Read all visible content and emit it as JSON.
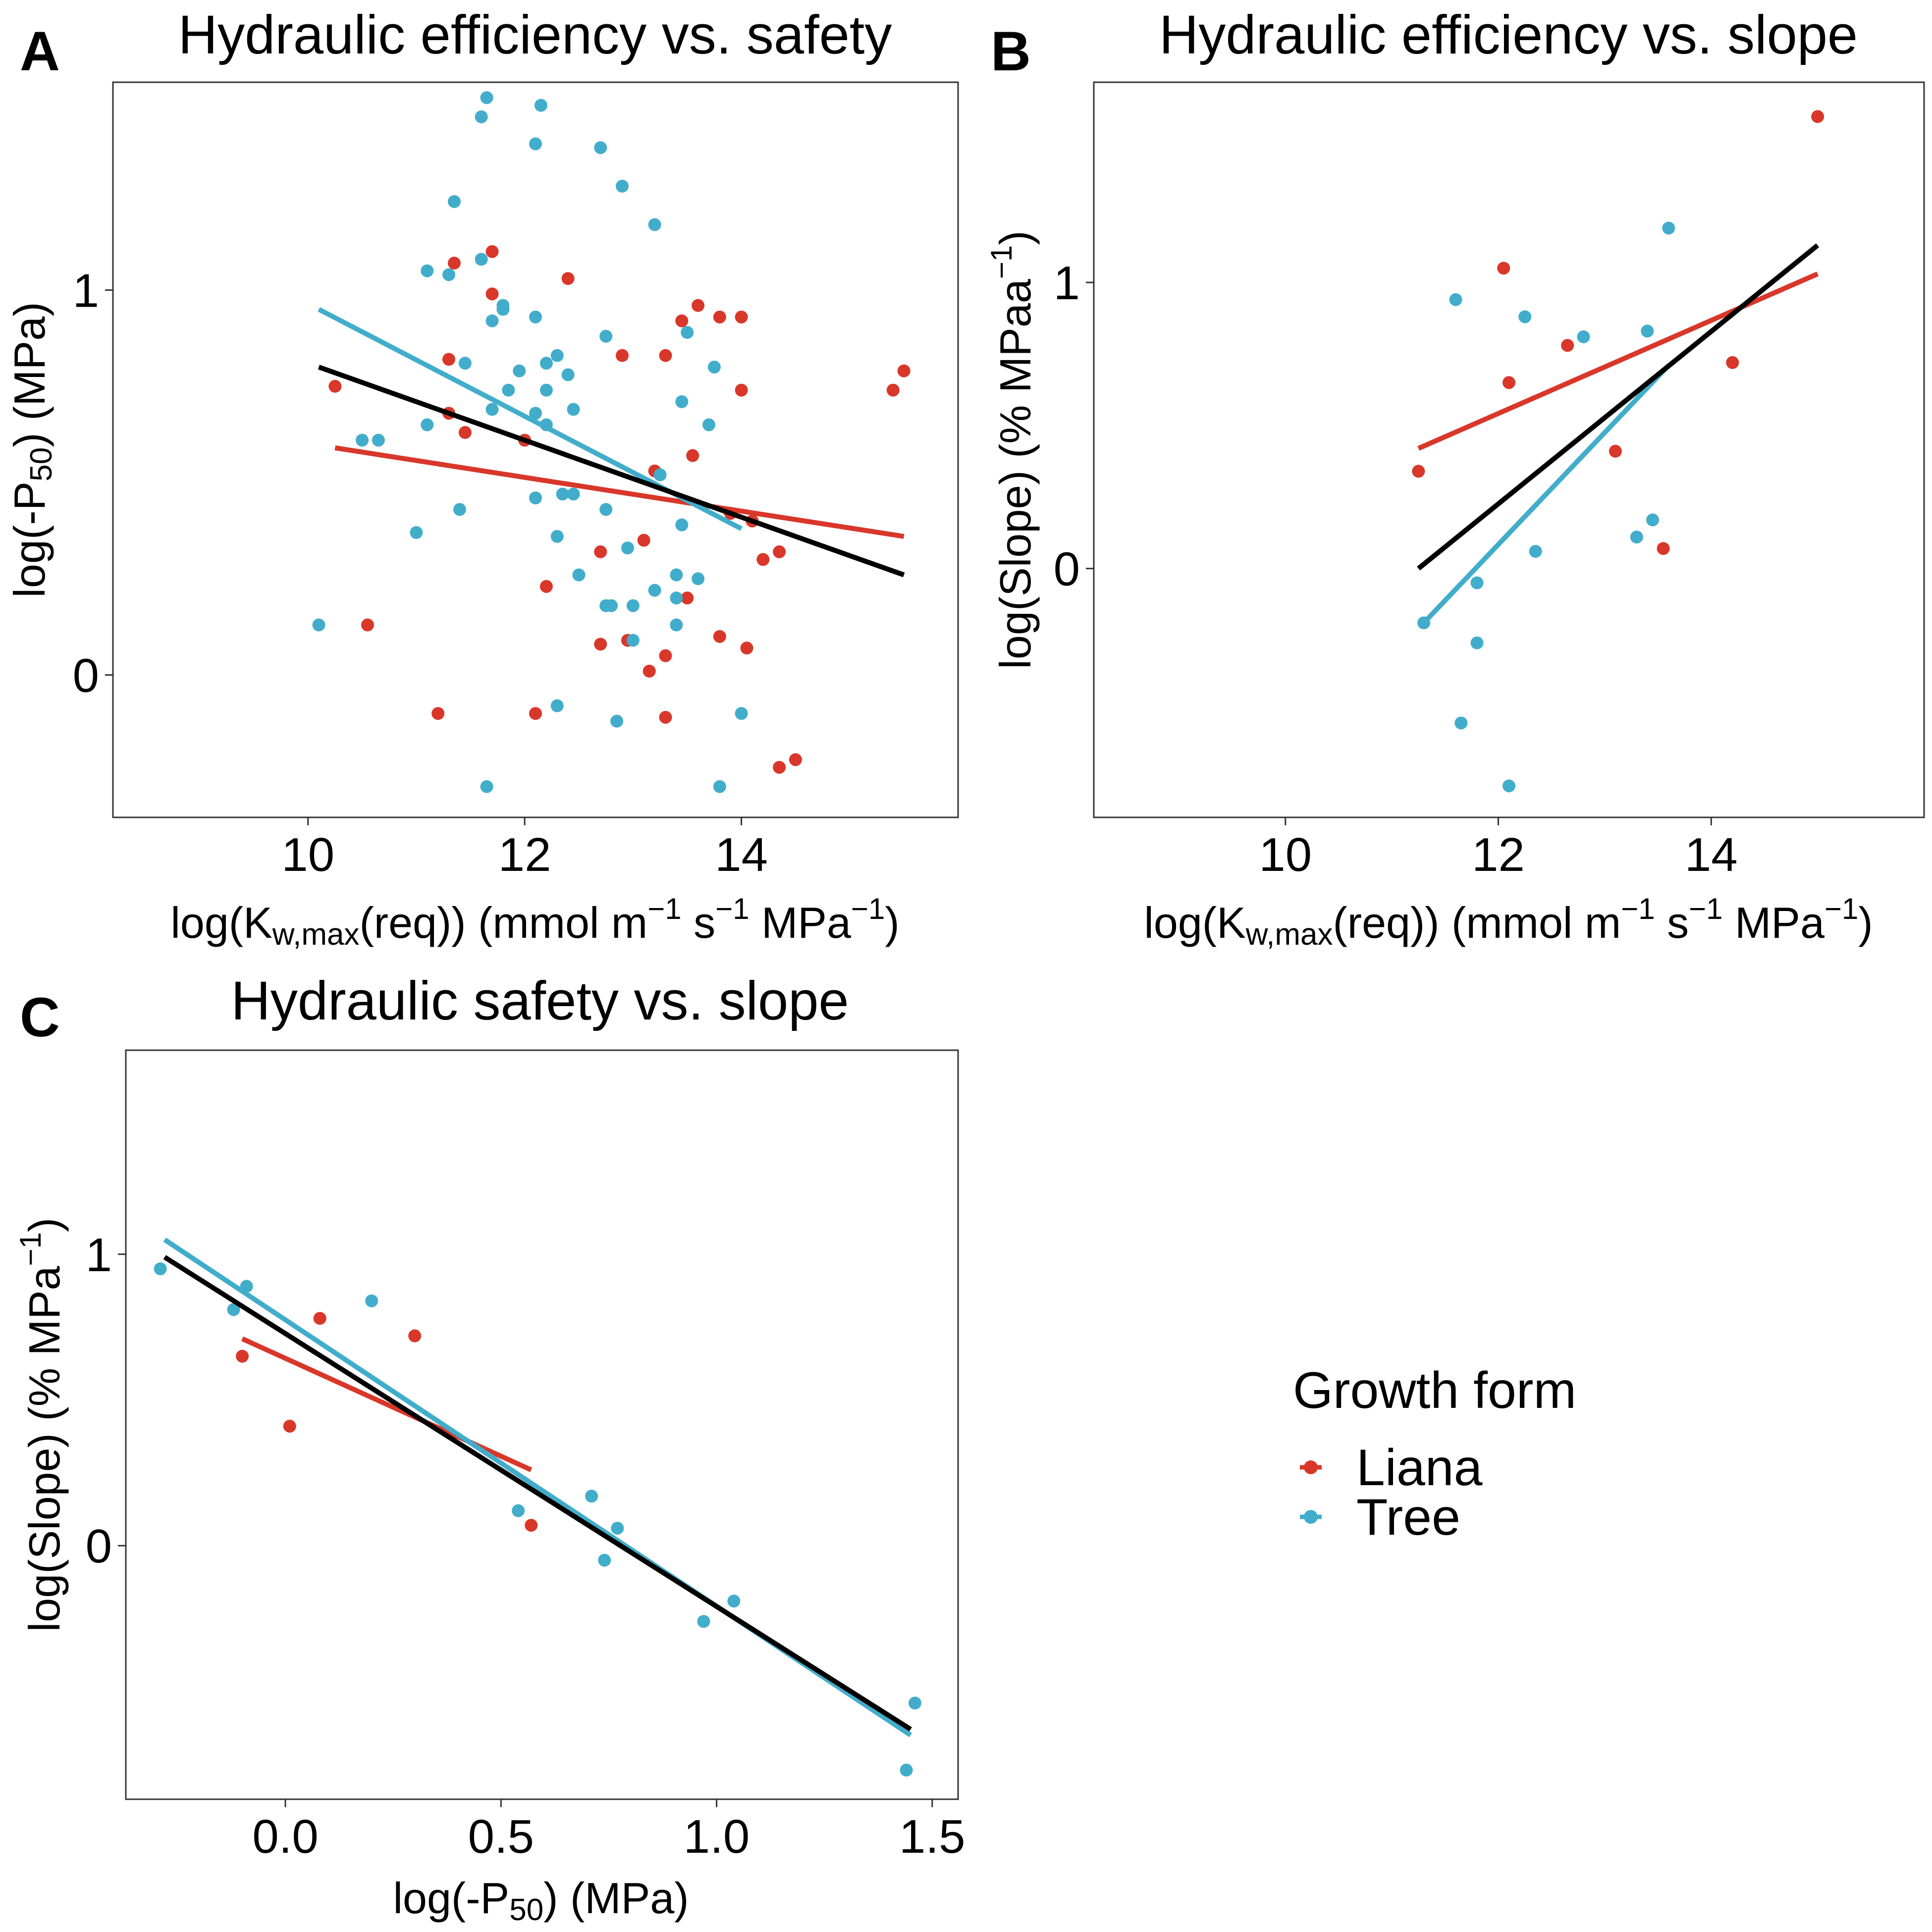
{
  "colors": {
    "liana": "#d8372a",
    "tree": "#42adcb",
    "all": "#000000"
  },
  "legend": {
    "title": "Growth form",
    "items": [
      {
        "label": "Liana",
        "color": "#d8372a"
      },
      {
        "label": "Tree",
        "color": "#42adcb"
      }
    ]
  },
  "panels": [
    {
      "label": "A",
      "title": "Hydraulic efficiency vs. safety",
      "xlabel": {
        "pre": "log(K",
        "sub": "w,max",
        "mid": "(req))  (mmol m",
        "sup1": "−1",
        "mid2": " s",
        "sup2": "−1",
        "mid3": " MPa",
        "sup3": "−1",
        "post": ")"
      },
      "ylabel": {
        "pre": "log(-P",
        "sub": "50",
        "post": ") (MPa)"
      }
    },
    {
      "label": "B",
      "title": "Hydraulic efficiency vs. slope",
      "xlabel": {
        "pre": "log(K",
        "sub": "w,max",
        "mid": "(req))  (mmol m",
        "sup1": "−1",
        "mid2": " s",
        "sup2": "−1",
        "mid3": " MPa",
        "sup3": "−1",
        "post": ")"
      },
      "ylabel": {
        "pre": "log(Slope) (% MPaa",
        "sup": "−1",
        "post": ")"
      }
    },
    {
      "label": "C",
      "title": "Hydraulic safety vs. slope",
      "xlabel": {
        "pre": "log(-P",
        "sub": "50",
        "post": ") (MPa)"
      },
      "ylabel": {
        "pre": "log(Slope) (% MPa",
        "sup": "−1",
        "post": ")"
      }
    }
  ],
  "chart_data": [
    {
      "type": "scatter",
      "title": "Hydraulic efficiency vs. safety",
      "xlabel": "log(Kw,max(req))  (mmol m−1 s−1 MPa−1)",
      "ylabel": "log(-P50) (MPa)",
      "xlim": [
        8.2,
        16.0
      ],
      "ylim": [
        -0.37,
        1.54
      ],
      "xticks": [
        10,
        12,
        14
      ],
      "yticks": [
        0,
        1
      ],
      "grid": false,
      "series": [
        {
          "name": "Liana",
          "points": [
            [
              10.25,
              0.75
            ],
            [
              10.55,
              0.13
            ],
            [
              11.2,
              -0.1
            ],
            [
              11.3,
              0.82
            ],
            [
              11.3,
              0.68
            ],
            [
              11.35,
              1.07
            ],
            [
              11.45,
              0.63
            ],
            [
              11.7,
              0.99
            ],
            [
              11.7,
              1.1
            ],
            [
              12.0,
              0.61
            ],
            [
              12.1,
              -0.1
            ],
            [
              12.2,
              0.23
            ],
            [
              12.4,
              1.03
            ],
            [
              12.7,
              0.32
            ],
            [
              12.7,
              0.08
            ],
            [
              12.9,
              0.83
            ],
            [
              12.95,
              0.09
            ],
            [
              13.1,
              0.35
            ],
            [
              13.15,
              0.01
            ],
            [
              13.2,
              0.53
            ],
            [
              13.3,
              0.05
            ],
            [
              13.3,
              -0.11
            ],
            [
              13.3,
              0.83
            ],
            [
              13.45,
              0.92
            ],
            [
              13.5,
              0.2
            ],
            [
              13.55,
              0.57
            ],
            [
              13.6,
              0.96
            ],
            [
              13.8,
              0.93
            ],
            [
              13.8,
              0.1
            ],
            [
              13.9,
              0.42
            ],
            [
              14.0,
              0.93
            ],
            [
              14.0,
              0.74
            ],
            [
              14.05,
              0.07
            ],
            [
              14.1,
              0.4
            ],
            [
              14.2,
              0.3
            ],
            [
              14.35,
              0.32
            ],
            [
              14.35,
              -0.24
            ],
            [
              14.5,
              -0.22
            ],
            [
              15.4,
              0.74
            ],
            [
              15.5,
              0.79
            ]
          ]
        },
        {
          "name": "Tree",
          "points": [
            [
              10.1,
              0.13
            ],
            [
              10.5,
              0.61
            ],
            [
              10.65,
              0.61
            ],
            [
              11.0,
              0.37
            ],
            [
              11.1,
              0.65
            ],
            [
              11.1,
              1.05
            ],
            [
              11.3,
              1.04
            ],
            [
              11.35,
              1.23
            ],
            [
              11.4,
              0.43
            ],
            [
              11.45,
              0.81
            ],
            [
              11.6,
              1.08
            ],
            [
              11.6,
              1.45
            ],
            [
              11.65,
              -0.29
            ],
            [
              11.65,
              1.5
            ],
            [
              11.7,
              0.69
            ],
            [
              11.7,
              0.92
            ],
            [
              11.8,
              0.96
            ],
            [
              11.8,
              0.95
            ],
            [
              11.85,
              0.74
            ],
            [
              11.95,
              0.79
            ],
            [
              12.1,
              1.38
            ],
            [
              12.1,
              0.68
            ],
            [
              12.1,
              0.93
            ],
            [
              12.1,
              0.46
            ],
            [
              12.15,
              1.48
            ],
            [
              12.2,
              0.65
            ],
            [
              12.2,
              0.81
            ],
            [
              12.2,
              0.74
            ],
            [
              12.3,
              0.83
            ],
            [
              12.3,
              0.36
            ],
            [
              12.3,
              -0.08
            ],
            [
              12.35,
              0.47
            ],
            [
              12.4,
              0.78
            ],
            [
              12.45,
              0.69
            ],
            [
              12.45,
              0.47
            ],
            [
              12.5,
              0.26
            ],
            [
              12.7,
              1.37
            ],
            [
              12.75,
              0.88
            ],
            [
              12.75,
              0.43
            ],
            [
              12.75,
              0.18
            ],
            [
              12.8,
              0.18
            ],
            [
              12.85,
              -0.12
            ],
            [
              12.9,
              1.27
            ],
            [
              12.95,
              0.33
            ],
            [
              13.0,
              0.18
            ],
            [
              13.0,
              0.09
            ],
            [
              13.2,
              1.17
            ],
            [
              13.2,
              0.22
            ],
            [
              13.25,
              0.52
            ],
            [
              13.4,
              0.26
            ],
            [
              13.4,
              0.13
            ],
            [
              13.4,
              0.2
            ],
            [
              13.45,
              0.71
            ],
            [
              13.45,
              0.39
            ],
            [
              13.5,
              0.89
            ],
            [
              13.6,
              0.25
            ],
            [
              13.7,
              0.65
            ],
            [
              13.75,
              0.8
            ],
            [
              13.8,
              -0.29
            ],
            [
              14.0,
              -0.1
            ]
          ]
        }
      ],
      "fits": [
        {
          "name": "All",
          "x": [
            10.1,
            15.5
          ],
          "y": [
            0.8,
            0.26
          ]
        },
        {
          "name": "Liana",
          "x": [
            10.25,
            15.5
          ],
          "y": [
            0.59,
            0.36
          ]
        },
        {
          "name": "Tree",
          "x": [
            10.1,
            14.0
          ],
          "y": [
            0.95,
            0.38
          ]
        }
      ]
    },
    {
      "type": "scatter",
      "title": "Hydraulic efficiency vs. slope",
      "xlabel": "log(Kw,max(req))  (mmol m−1 s−1 MPa−1)",
      "ylabel": "log(Slope) (% MPaa−1)",
      "xlim": [
        8.2,
        16.0
      ],
      "ylim": [
        -0.87,
        1.7
      ],
      "xticks": [
        10,
        12,
        14
      ],
      "yticks": [
        0,
        1
      ],
      "grid": false,
      "series": [
        {
          "name": "Liana",
          "points": [
            [
              11.25,
              0.34
            ],
            [
              12.05,
              1.05
            ],
            [
              12.1,
              0.65
            ],
            [
              12.65,
              0.78
            ],
            [
              13.1,
              0.41
            ],
            [
              13.55,
              0.07
            ],
            [
              14.2,
              0.72
            ],
            [
              15.0,
              1.58
            ]
          ]
        },
        {
          "name": "Tree",
          "points": [
            [
              11.3,
              -0.19
            ],
            [
              11.6,
              0.94
            ],
            [
              11.65,
              -0.54
            ],
            [
              11.8,
              -0.26
            ],
            [
              11.8,
              -0.05
            ],
            [
              12.1,
              -0.76
            ],
            [
              12.25,
              0.88
            ],
            [
              12.35,
              0.06
            ],
            [
              12.8,
              0.81
            ],
            [
              13.3,
              0.11
            ],
            [
              13.4,
              0.83
            ],
            [
              13.45,
              0.17
            ],
            [
              13.6,
              1.19
            ]
          ]
        }
      ],
      "fits": [
        {
          "name": "All",
          "x": [
            11.25,
            15.0
          ],
          "y": [
            0.0,
            1.13
          ]
        },
        {
          "name": "Liana",
          "x": [
            11.25,
            15.0
          ],
          "y": [
            0.42,
            1.03
          ]
        },
        {
          "name": "Tree",
          "x": [
            11.3,
            13.6
          ],
          "y": [
            -0.19,
            0.71
          ]
        }
      ]
    },
    {
      "type": "scatter",
      "title": "Hydraulic safety vs. slope",
      "xlabel": "log(-P50) (MPa)",
      "ylabel": "log(Slope) (% MPa−1)",
      "xlim": [
        -0.37,
        1.56
      ],
      "ylim": [
        -0.87,
        1.7
      ],
      "xticks": [
        0.0,
        0.5,
        1.0,
        1.5
      ],
      "xticklabels": [
        "0.0",
        "0.5",
        "1.0",
        "1.5"
      ],
      "yticks": [
        0,
        1
      ],
      "grid": false,
      "series": [
        {
          "name": "Liana",
          "points": [
            [
              -0.1,
              0.65
            ],
            [
              0.01,
              0.41
            ],
            [
              0.08,
              0.78
            ],
            [
              0.3,
              0.72
            ],
            [
              0.57,
              0.07
            ]
          ]
        },
        {
          "name": "Tree",
          "points": [
            [
              -0.29,
              0.95
            ],
            [
              -0.12,
              0.81
            ],
            [
              -0.09,
              0.89
            ],
            [
              0.2,
              0.84
            ],
            [
              0.54,
              0.12
            ],
            [
              0.71,
              0.17
            ],
            [
              0.74,
              -0.05
            ],
            [
              0.77,
              0.06
            ],
            [
              0.97,
              -0.26
            ],
            [
              1.04,
              -0.19
            ],
            [
              1.44,
              -0.77
            ],
            [
              1.46,
              -0.54
            ]
          ]
        }
      ],
      "fits": [
        {
          "name": "All",
          "x": [
            -0.28,
            1.45
          ],
          "y": [
            0.99,
            -0.63
          ]
        },
        {
          "name": "Liana",
          "x": [
            -0.1,
            0.57
          ],
          "y": [
            0.71,
            0.26
          ]
        },
        {
          "name": "Tree",
          "x": [
            -0.28,
            1.45
          ],
          "y": [
            1.05,
            -0.65
          ]
        }
      ]
    }
  ]
}
